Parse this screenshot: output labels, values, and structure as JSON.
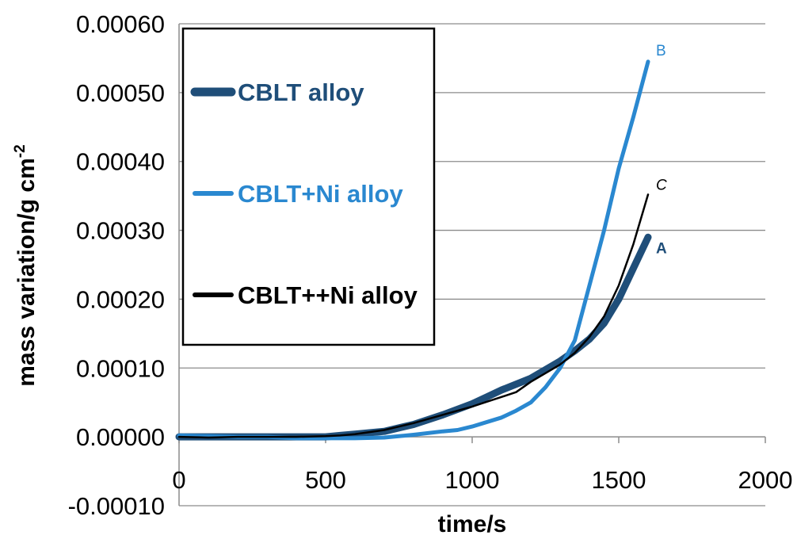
{
  "chart_data": {
    "type": "line",
    "title": "",
    "xlabel": "time/s",
    "ylabel": "mass variation/g cm",
    "ylabel_sup": "-2",
    "xlim": [
      0,
      2000
    ],
    "ylim": [
      -0.0001,
      0.0006
    ],
    "x_ticks": [
      "0",
      "500",
      "1000",
      "1500",
      "2000"
    ],
    "y_ticks": [
      "-0.00010",
      "0.00000",
      "0.00010",
      "0.00020",
      "0.00030",
      "0.00040",
      "0.00050",
      "0.00060"
    ],
    "grid": "horizontal",
    "legend_position": "top-left",
    "series": [
      {
        "name": "CBLT alloy",
        "end_label": "A",
        "color": "#1f4e79",
        "x": [
          0,
          100,
          200,
          300,
          400,
          500,
          550,
          600,
          700,
          800,
          900,
          1000,
          1050,
          1100,
          1200,
          1300,
          1350,
          1400,
          1450,
          1500,
          1550,
          1600
        ],
        "y": [
          0.0,
          0.0,
          0.0,
          0.0,
          0.0,
          0.0,
          2e-06,
          4e-06,
          8e-06,
          1.8e-05,
          3.2e-05,
          4.8e-05,
          5.8e-05,
          6.8e-05,
          8.5e-05,
          0.00011,
          0.000125,
          0.000142,
          0.000165,
          0.0002,
          0.000245,
          0.00029
        ]
      },
      {
        "name": "CBLT+Ni alloy",
        "end_label": "B",
        "color": "#2a88d0",
        "x": [
          0,
          100,
          200,
          300,
          400,
          500,
          600,
          700,
          800,
          900,
          950,
          1000,
          1100,
          1150,
          1200,
          1250,
          1300,
          1350,
          1400,
          1450,
          1500,
          1550,
          1600
        ],
        "y": [
          2e-06,
          1e-06,
          0.0,
          0.0,
          -2e-06,
          -2e-06,
          -2e-06,
          -1e-06,
          3e-06,
          8e-06,
          1e-05,
          1.5e-05,
          2.8e-05,
          3.8e-05,
          5e-05,
          7.2e-05,
          0.0001,
          0.00014,
          0.00022,
          0.0003,
          0.00039,
          0.000465,
          0.000545
        ]
      },
      {
        "name": "CBLT++Ni alloy",
        "end_label": "C",
        "color": "#000000",
        "x": [
          0,
          100,
          200,
          300,
          400,
          500,
          550,
          600,
          700,
          800,
          900,
          1000,
          1100,
          1150,
          1200,
          1300,
          1350,
          1400,
          1450,
          1500,
          1550,
          1600
        ],
        "y": [
          0.0,
          -1e-06,
          0.0,
          0.0,
          0.0,
          1e-06,
          2e-06,
          4e-06,
          1e-05,
          2e-05,
          3.2e-05,
          4.4e-05,
          5.8e-05,
          6.5e-05,
          8e-05,
          0.000105,
          0.000122,
          0.000145,
          0.000175,
          0.00022,
          0.00028,
          0.000352
        ]
      }
    ]
  }
}
